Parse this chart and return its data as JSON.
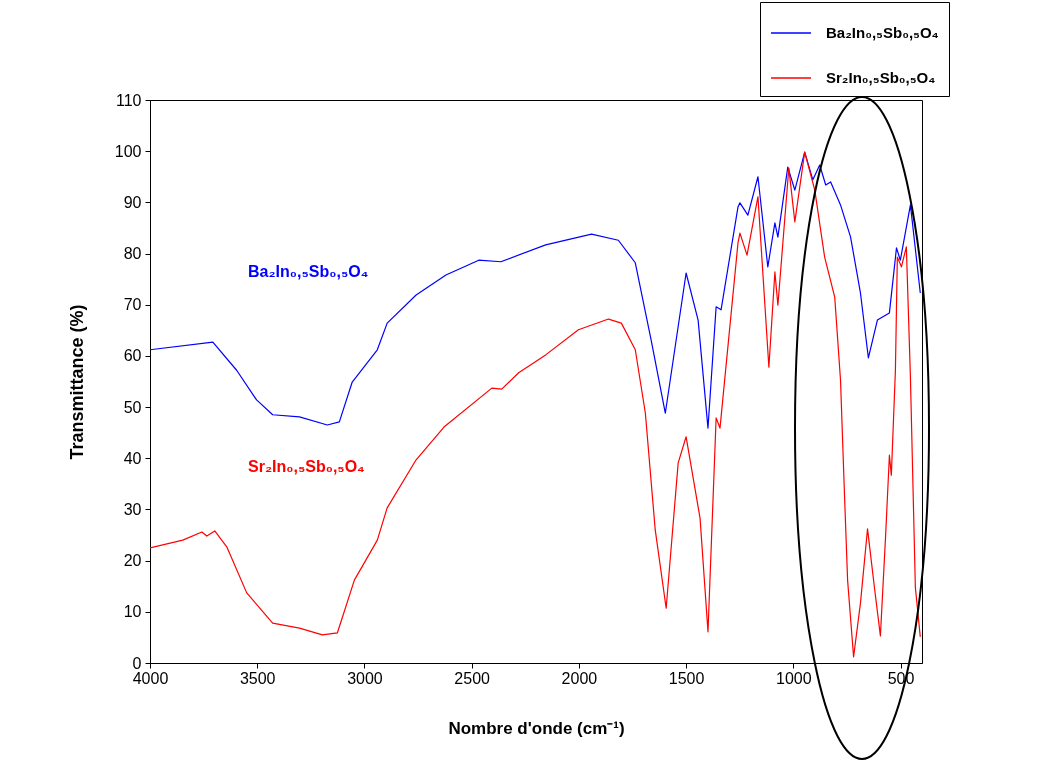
{
  "chart_data": {
    "type": "line",
    "xlabel": "Nombre  d'onde (cm⁻¹)",
    "ylabel": "Transmittance (%)",
    "xlim": [
      4000,
      400
    ],
    "xticks": [
      4000,
      3500,
      3000,
      2500,
      2000,
      1500,
      1000,
      500
    ],
    "ylim": [
      0,
      110
    ],
    "yticks": [
      0,
      10,
      20,
      30,
      40,
      50,
      60,
      70,
      80,
      90,
      100,
      110
    ],
    "grid": false,
    "legend": "top right",
    "annotations": [
      "Ba₂In₀,₅Sb₀,₅O₄",
      "Sr₂In₀,₅Sb₀,₅O₄"
    ],
    "series": [
      {
        "name": "Ba₂In₀,₅Sb₀,₅O₄",
        "color": "#0000ff",
        "x": [
          4000,
          3707,
          3596,
          3503,
          3428,
          3303,
          3173,
          3117,
          3057,
          2940,
          2894,
          2759,
          2620,
          2467,
          2364,
          2155,
          1941,
          1816,
          1737,
          1663,
          1597,
          1500,
          1444,
          1398,
          1360,
          1337,
          1258,
          1249,
          1212,
          1165,
          1119,
          1086,
          1072,
          1026,
          993,
          947,
          909,
          877,
          849,
          826,
          780,
          733,
          687,
          650,
          608,
          552,
          519,
          501,
          454,
          408
        ],
        "values": [
          61.2,
          62.7,
          57.2,
          51.4,
          48.5,
          48.1,
          46.5,
          47.1,
          54.9,
          61.2,
          66.4,
          71.9,
          75.8,
          78.7,
          78.4,
          81.7,
          83.8,
          82.6,
          78.2,
          63.1,
          48.8,
          76.2,
          67.0,
          45.9,
          69.6,
          69.0,
          89.1,
          89.9,
          87.5,
          95.0,
          77.4,
          86.0,
          83.2,
          96.9,
          92.4,
          99.8,
          94.4,
          97.3,
          93.4,
          94.0,
          89.5,
          83.2,
          72.3,
          59.6,
          67.0,
          68.4,
          81.1,
          78.7,
          89.5,
          72.3
        ]
      },
      {
        "name": "Sr₂In₀,₅Sb₀,₅O₄",
        "color": "#ff0000",
        "x": [
          4000,
          3847,
          3758,
          3735,
          3698,
          3642,
          3549,
          3428,
          3303,
          3196,
          3126,
          3047,
          2940,
          2894,
          2759,
          2629,
          2406,
          2360,
          2281,
          2155,
          2002,
          1862,
          1802,
          1737,
          1690,
          1644,
          1593,
          1537,
          1500,
          1435,
          1398,
          1360,
          1342,
          1258,
          1249,
          1216,
          1165,
          1114,
          1086,
          1072,
          1021,
          993,
          947,
          900,
          854,
          807,
          780,
          761,
          747,
          719,
          687,
          654,
          622,
          594,
          570,
          552,
          543,
          524,
          515,
          496,
          473,
          454,
          431,
          408
        ],
        "values": [
          22.5,
          24.0,
          25.6,
          24.8,
          25.8,
          22.7,
          13.7,
          7.8,
          6.8,
          5.5,
          5.9,
          16.2,
          24.0,
          30.3,
          39.7,
          46.1,
          53.7,
          53.5,
          56.7,
          60.2,
          65.1,
          67.2,
          66.4,
          61.2,
          48.8,
          26.0,
          10.7,
          39.1,
          44.2,
          28.3,
          6.1,
          47.9,
          45.9,
          82.1,
          84.0,
          79.7,
          91.1,
          57.8,
          76.4,
          69.9,
          96.7,
          86.2,
          99.8,
          92.4,
          79.3,
          71.5,
          55.3,
          32.4,
          16.2,
          1.2,
          11.7,
          26.2,
          14.8,
          5.3,
          24.6,
          40.6,
          36.7,
          57.2,
          79.3,
          77.4,
          81.3,
          55.9,
          14.8,
          5.1
        ]
      }
    ]
  }
}
